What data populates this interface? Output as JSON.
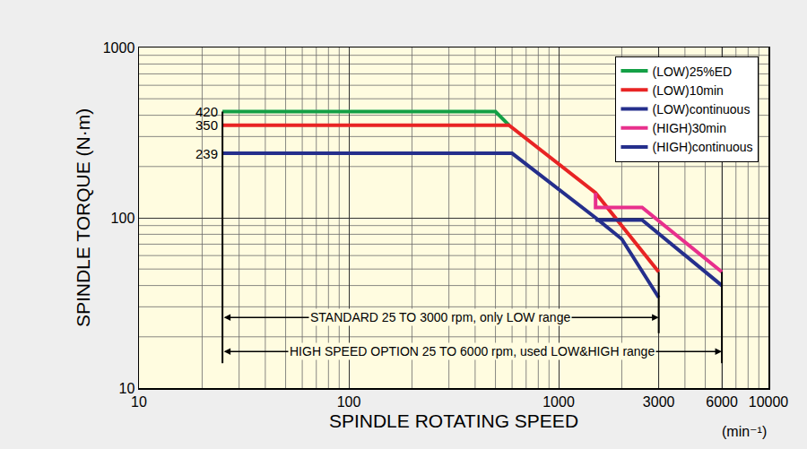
{
  "chart_data": {
    "type": "line",
    "x_title": "SPINDLE ROTATING SPEED",
    "y_title": "SPINDLE TORQUE (N·m)",
    "x_unit": "(min⁻¹)",
    "log": true,
    "grid": true,
    "legend": "top right",
    "xlim": [
      10,
      10000
    ],
    "ylim": [
      10,
      1000
    ],
    "xticks": [
      10,
      100,
      1000,
      3000,
      6000,
      10000
    ],
    "yticks": [
      10,
      100,
      1000
    ],
    "series": [
      {
        "name": "(LOW)25%ED",
        "color": "#14a046",
        "x": [
          25,
          500,
          580
        ],
        "values": [
          420,
          420,
          350
        ]
      },
      {
        "name": "(LOW)10min",
        "color": "#e82424",
        "x": [
          25,
          580,
          1500,
          3000
        ],
        "values": [
          350,
          350,
          140,
          48
        ]
      },
      {
        "name": "(LOW)continuous",
        "color": "#252f8c",
        "x": [
          25,
          600,
          1500,
          2000,
          3000
        ],
        "values": [
          239,
          239,
          100,
          75,
          34
        ]
      },
      {
        "name": "(HIGH)30min",
        "color": "#e8308c",
        "x": [
          1500,
          1500,
          2500,
          6000
        ],
        "values": [
          140,
          115,
          115,
          48
        ]
      },
      {
        "name": "(HIGH)continuous",
        "color": "#252f8c",
        "x": [
          1500,
          2500,
          6000
        ],
        "values": [
          97,
          97,
          40
        ]
      }
    ],
    "annotations": [
      {
        "text": "420",
        "x": 25,
        "y": 420
      },
      {
        "text": "350",
        "x": 25,
        "y": 350
      },
      {
        "text": "239",
        "x": 25,
        "y": 239
      }
    ],
    "range_arrows": [
      {
        "text": "STANDARD 25 TO 3000 rpm, only LOW range",
        "x_start": 25,
        "x_end": 3000,
        "y": 26
      },
      {
        "text": "HIGH SPEED OPTION 25 TO 6000 rpm, used LOW&HIGH range",
        "x_start": 25,
        "x_end": 6000,
        "y": 16.4
      }
    ],
    "bound_lines": [
      {
        "x": 25,
        "y": [
          14,
          420
        ]
      },
      {
        "x": 3000,
        "y": [
          21,
          48
        ]
      },
      {
        "x": 6000,
        "y": [
          14,
          48
        ]
      }
    ]
  }
}
